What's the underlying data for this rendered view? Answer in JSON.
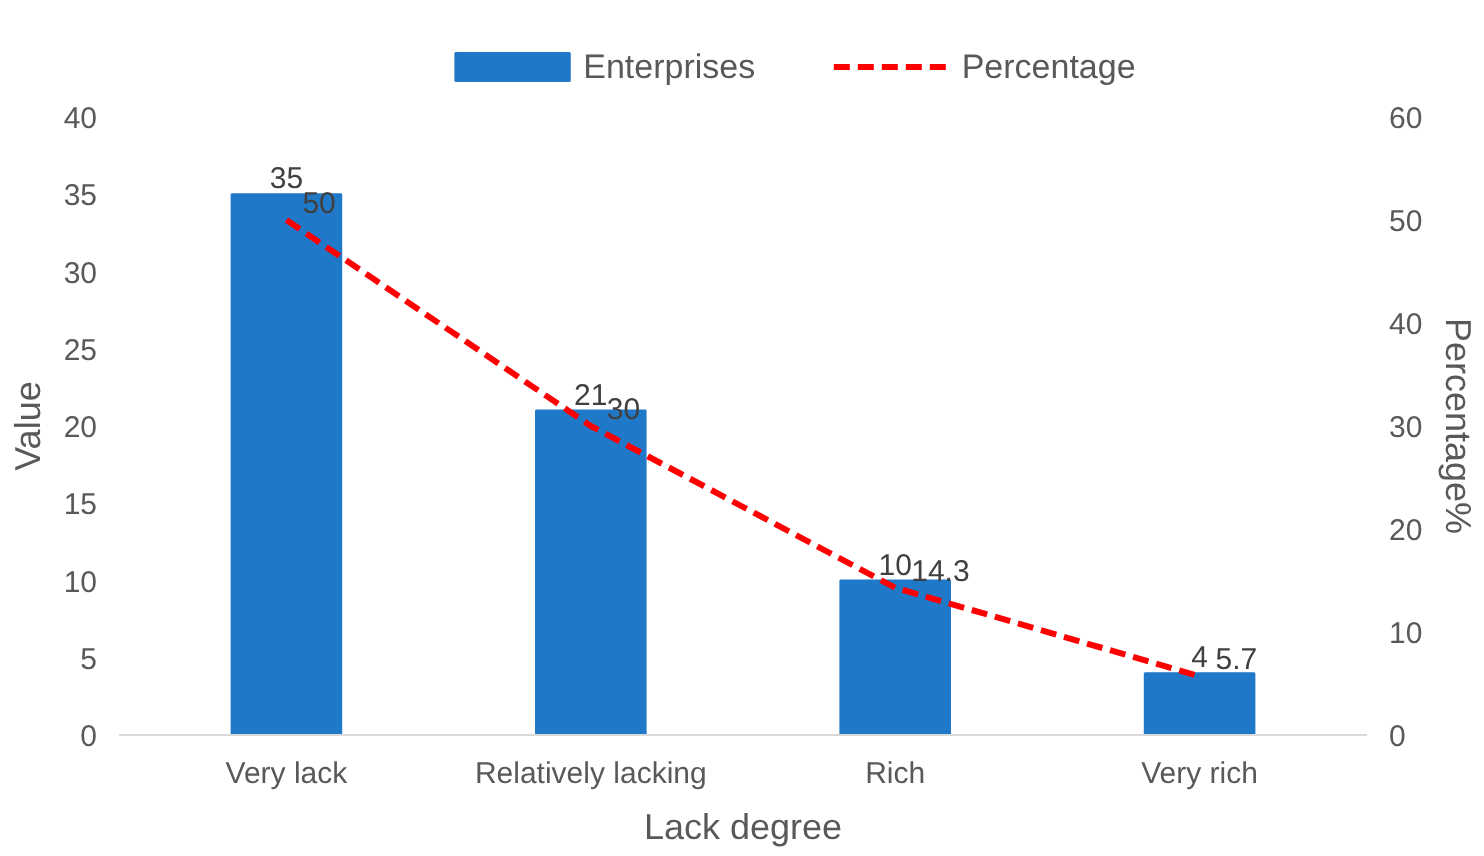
{
  "chart_data": {
    "type": "bar",
    "categories": [
      "Very lack",
      "Relatively lacking",
      "Rich",
      "Very rich"
    ],
    "series": [
      {
        "name": "Enterprises",
        "color": "#1f78c8",
        "values": [
          35,
          21,
          10,
          4
        ]
      },
      {
        "name": "Percentage",
        "type": "line",
        "axis": "y2",
        "color": "#ff0000",
        "line_style": "dashed",
        "values": [
          50,
          30,
          14.3,
          5.7
        ]
      }
    ],
    "xlabel": "Lack degree",
    "ylabel": "Value",
    "y2label": "Percentage%",
    "ylim": [
      0,
      40
    ],
    "yticks": [
      0,
      5,
      10,
      15,
      20,
      25,
      30,
      35,
      40
    ],
    "y2lim": [
      0,
      60
    ],
    "y2ticks": [
      0,
      10,
      20,
      30,
      40,
      50,
      60
    ],
    "data_labels": true,
    "legend": "top",
    "grid": false
  }
}
